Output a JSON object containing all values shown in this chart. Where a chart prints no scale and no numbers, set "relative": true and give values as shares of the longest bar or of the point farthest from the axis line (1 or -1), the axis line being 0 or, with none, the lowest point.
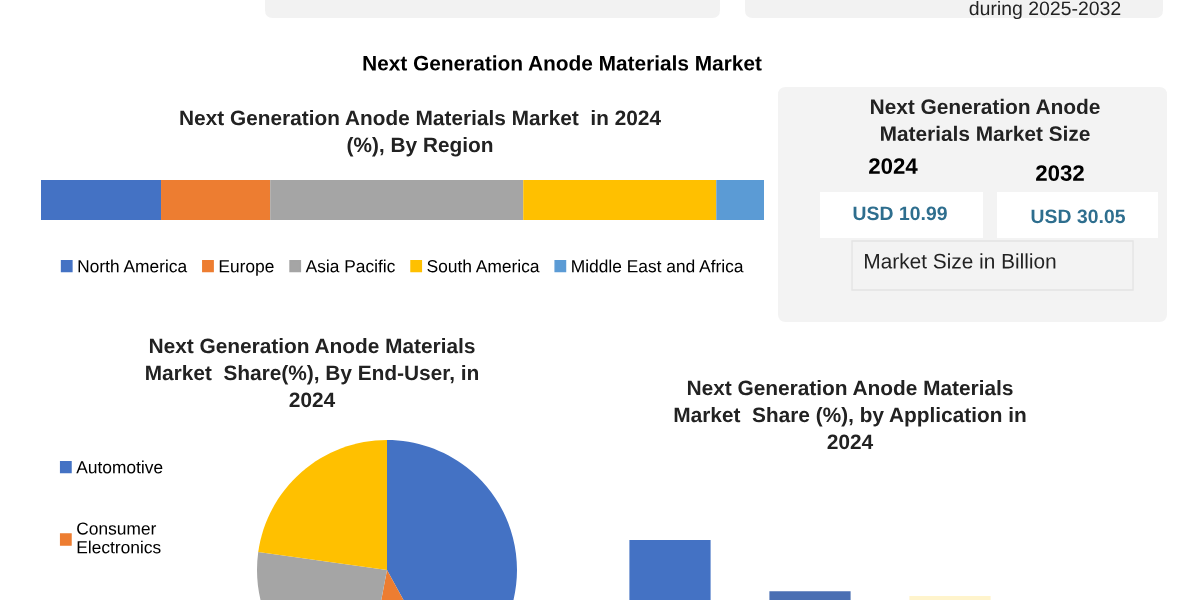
{
  "chart_data": [
    {
      "type": "other",
      "title": "Next Generation Anode Materials Market",
      "annotations": [
        "during 2025-2032"
      ]
    },
    {
      "type": "bar",
      "title": "Next Generation Anode Materials Market  in 2024\n(%), By Region",
      "orientation": "horizontal",
      "stacked": true,
      "relative": true,
      "legend": "bottom",
      "categories": [
        null
      ],
      "series": [
        {
          "name": "North America",
          "color": "#4472c4",
          "values": [
            0.166
          ]
        },
        {
          "name": "Europe",
          "color": "#ed7d31",
          "values": [
            0.151
          ]
        },
        {
          "name": "Asia Pacific",
          "color": "#a5a5a5",
          "values": [
            0.35
          ]
        },
        {
          "name": "South America",
          "color": "#ffc000",
          "values": [
            0.267
          ]
        },
        {
          "name": "Middle East and Africa",
          "color": "#5b9bd5",
          "values": [
            0.066
          ]
        }
      ]
    },
    {
      "type": "other",
      "title": "Next Generation Anode\nMaterials Market Size",
      "annotations": [
        "2024",
        "2032",
        "USD 10.99",
        "USD 30.05",
        "Market Size in Billion"
      ]
    },
    {
      "type": "pie",
      "title": "Next Generation Anode Materials\nMarket  Share(%), By End-User, in\n2024",
      "legend": "left",
      "categories": [
        "Automotive",
        "Consumer\nElectronics",
        null,
        null
      ],
      "values": [
        42,
        11,
        24.2,
        22.8
      ],
      "colors": [
        "#4472c4",
        "#ed7d31",
        "#a5a5a5",
        "#ffc000"
      ]
    },
    {
      "type": "bar",
      "title": "Next Generation Anode Materials\nMarket  Share (%), by Application in\n2024",
      "relative": true,
      "categories": [
        null,
        null,
        null
      ],
      "values": [
        1,
        0.68,
        0.65
      ],
      "colors": [
        "#4472c4",
        "#4a6fb3",
        "#fff4cc"
      ]
    }
  ]
}
